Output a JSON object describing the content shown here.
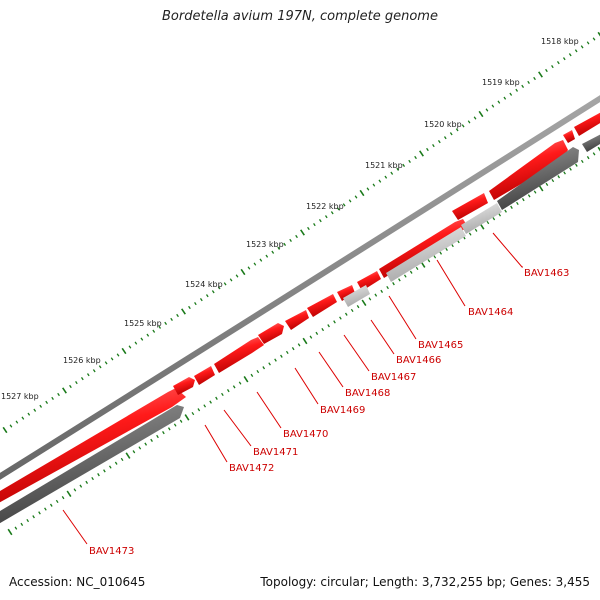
{
  "title": "Bordetella avium 197N, complete genome",
  "accession_label": "Accession: NC_010645",
  "summary_label": "Topology: circular; Length: 3,732,255 bp; Genes: 3,455",
  "kbp_labels": [
    "1518 kbp",
    "1519 kbp",
    "1520 kbp",
    "1521 kbp",
    "1522 kbp",
    "1523 kbp",
    "1524 kbp",
    "1525 kbp",
    "1526 kbp",
    "1527 kbp"
  ],
  "genes": [
    {
      "name": "BAV1463",
      "strand": "-"
    },
    {
      "name": "BAV1464",
      "strand": "-"
    },
    {
      "name": "BAV1465",
      "strand": "+"
    },
    {
      "name": "BAV1466",
      "strand": "-"
    },
    {
      "name": "BAV1467",
      "strand": "+"
    },
    {
      "name": "BAV1468",
      "strand": "+"
    },
    {
      "name": "BAV1469",
      "strand": "+"
    },
    {
      "name": "BAV1470",
      "strand": "+"
    },
    {
      "name": "BAV1471",
      "strand": "+"
    },
    {
      "name": "BAV1472",
      "strand": "+"
    },
    {
      "name": "BAV1473",
      "strand": "-"
    }
  ],
  "colors": {
    "gene_forward": "#ee0000",
    "gene_reverse": "#666666",
    "backbone": "#777777",
    "tick": "#1a7a1a",
    "leader": "#dd0000"
  }
}
